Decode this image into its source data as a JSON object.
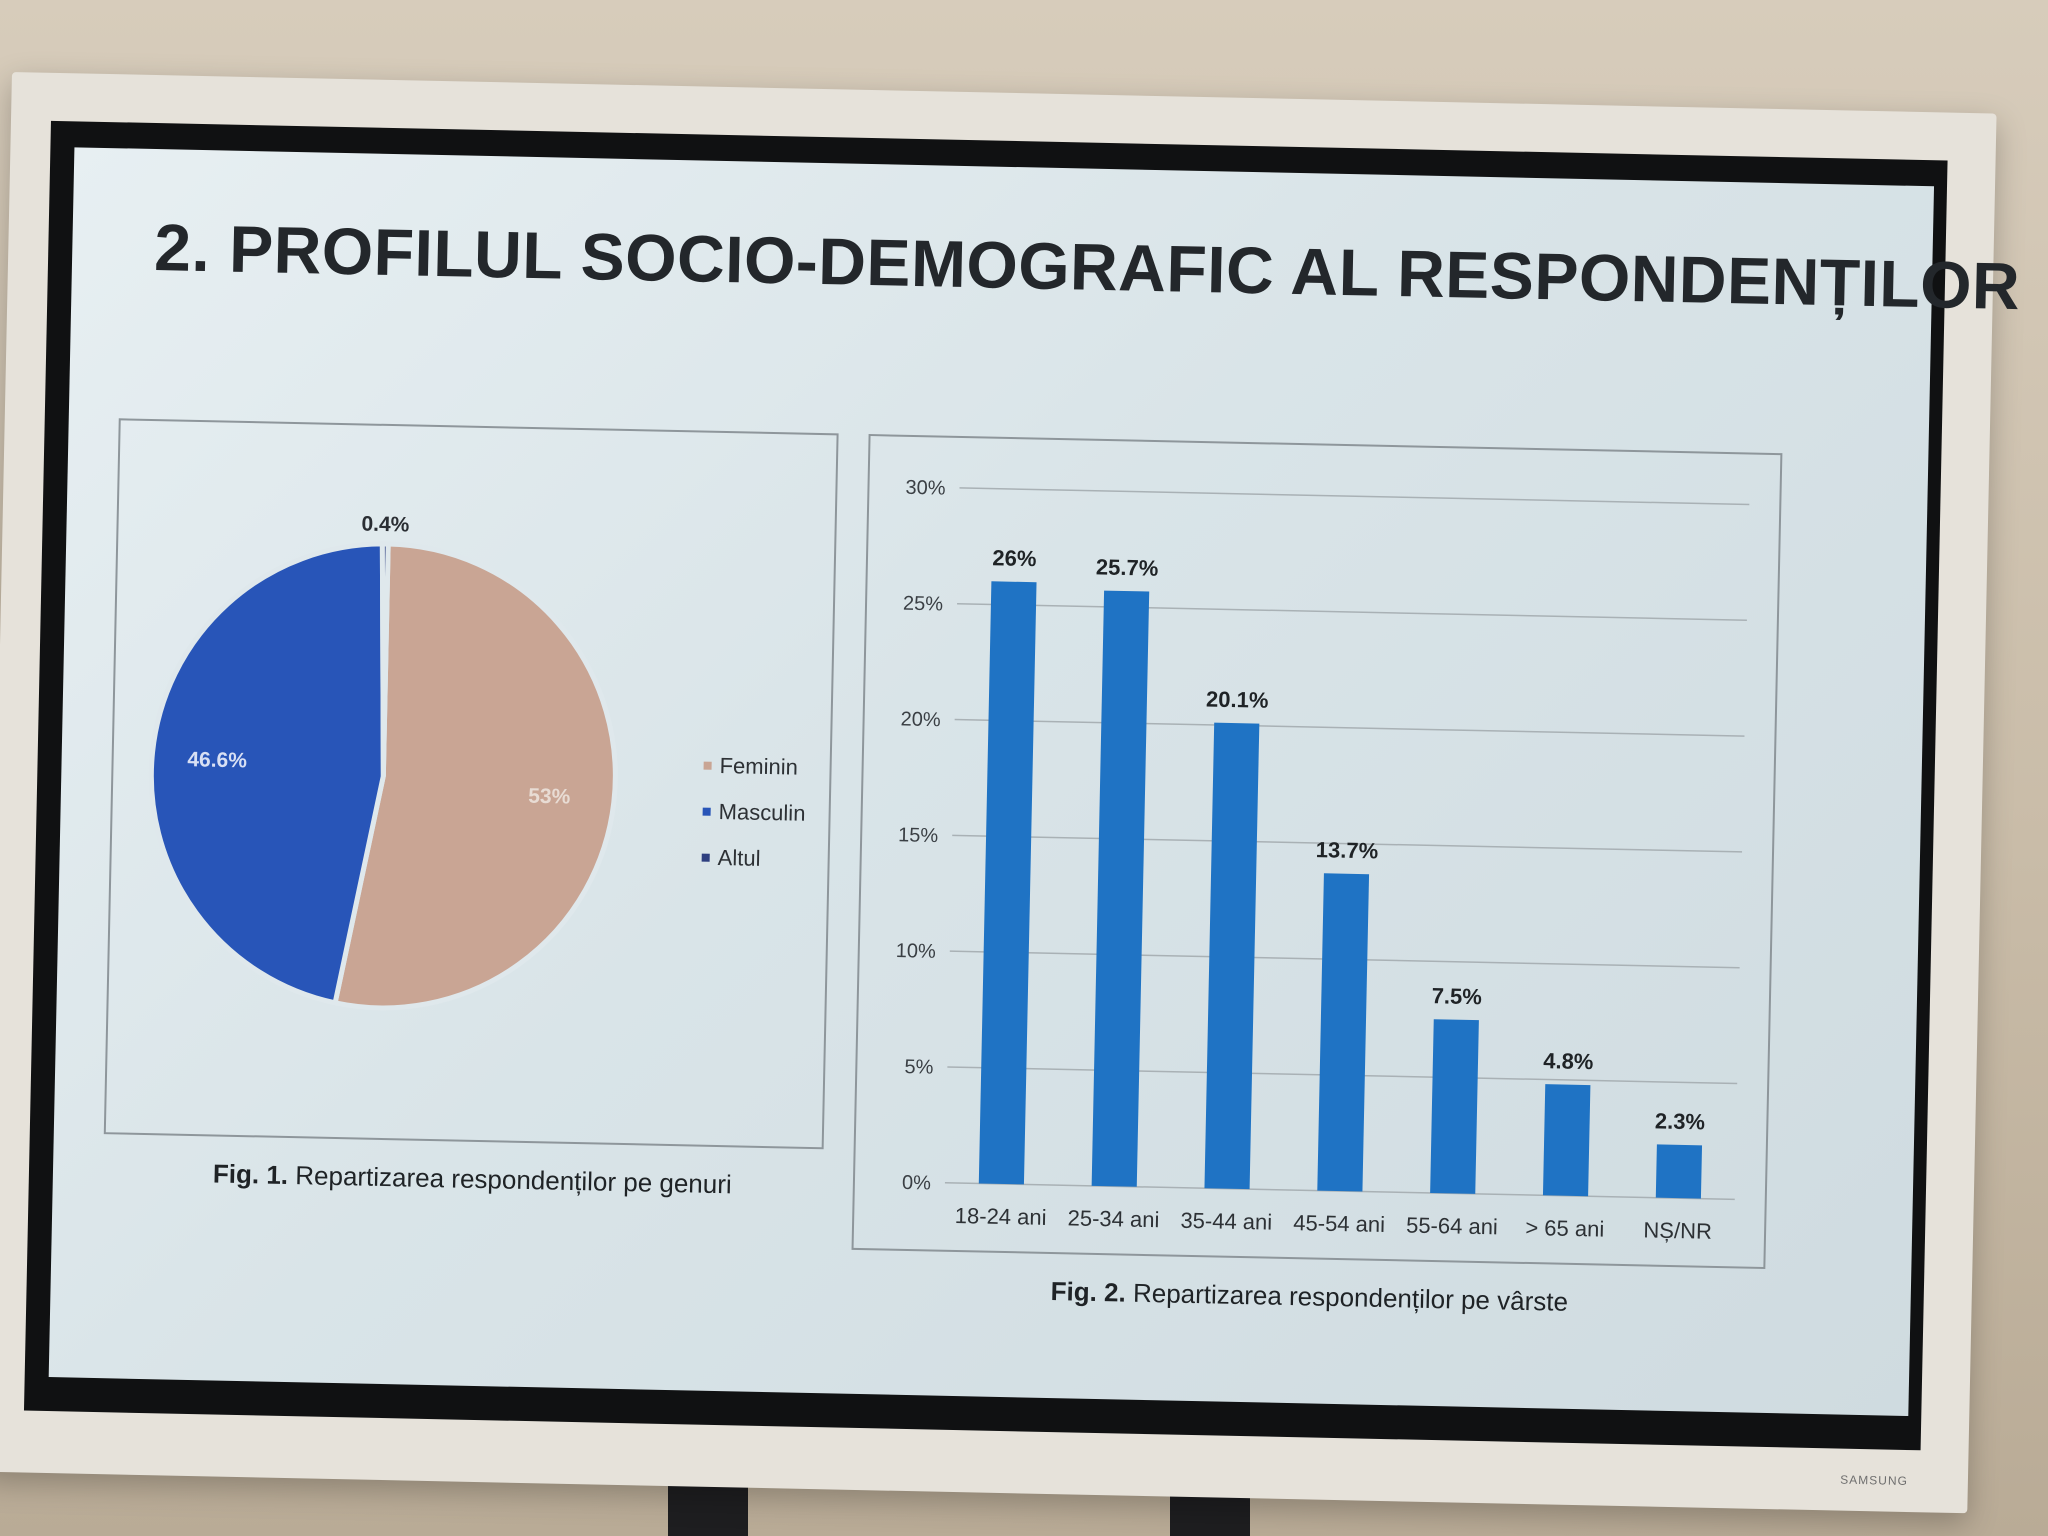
{
  "slide": {
    "title": "2. PROFILUL SOCIO-DEMOGRAFIC AL RESPONDENȚILOR",
    "brand": "SAMSUNG"
  },
  "fig1": {
    "caption_num": "Fig.  1.",
    "caption_text": "Repartizarea respondenților pe genuri"
  },
  "fig2": {
    "caption_num": "Fig.  2.",
    "caption_text": "Repartizarea respondenților pe vârste"
  },
  "colors": {
    "feminin": "#c9a594",
    "masculin": "#2855b8",
    "altul": "#2e3f80",
    "bar": "#1f73c4"
  },
  "chart_data": [
    {
      "type": "pie",
      "title": "",
      "slices": [
        {
          "label": "Feminin",
          "value": 53,
          "value_label": "53%"
        },
        {
          "label": "Masculin",
          "value": 46.6,
          "value_label": "46.6%"
        },
        {
          "label": "Altul",
          "value": 0.4,
          "value_label": "0.4%"
        }
      ],
      "legend": [
        "Feminin",
        "Masculin",
        "Altul"
      ],
      "legend_position": "right"
    },
    {
      "type": "bar",
      "title": "",
      "categories": [
        "18-24 ani",
        "25-34 ani",
        "35-44 ani",
        "45-54 ani",
        "55-64 ani",
        "> 65 ani",
        "NȘ/NR"
      ],
      "values": [
        26,
        25.7,
        20.1,
        13.7,
        7.5,
        4.8,
        2.3
      ],
      "value_labels": [
        "26%",
        "25.7%",
        "20.1%",
        "13.7%",
        "7.5%",
        "4.8%",
        "2.3%"
      ],
      "yticks": [
        "0%",
        "5%",
        "10%",
        "15%",
        "20%",
        "25%",
        "30%"
      ],
      "ylim": [
        0,
        30
      ],
      "grid": true,
      "xlabel": "",
      "ylabel": ""
    }
  ]
}
